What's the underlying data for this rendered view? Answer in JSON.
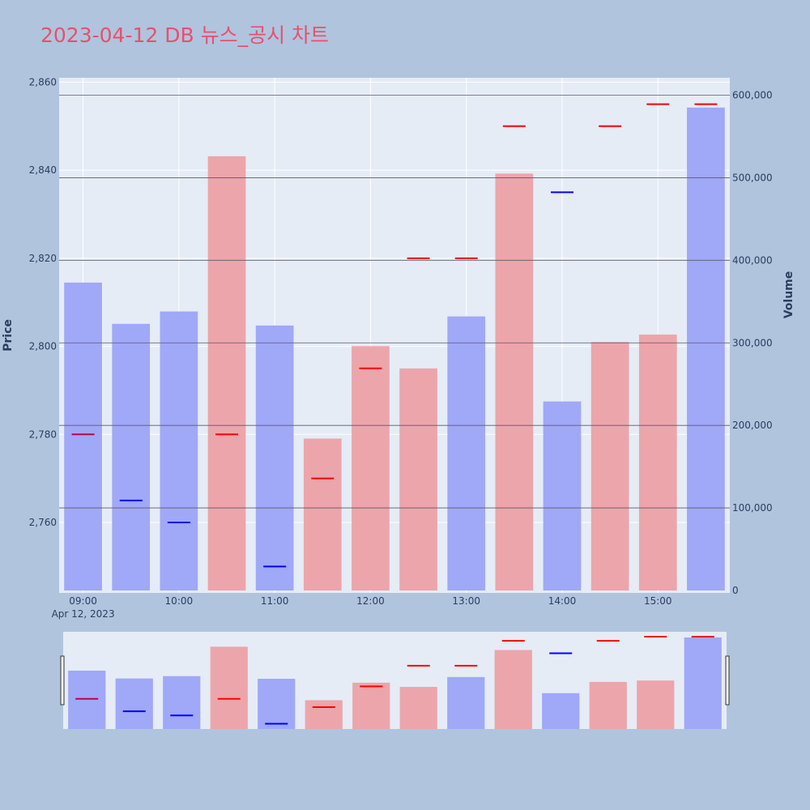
{
  "title": "2023-04-12 DB 뉴스_공시 차트",
  "chart_data": {
    "type": "bar",
    "x_tick_labels": [
      "09:00",
      "10:00",
      "11:00",
      "12:00",
      "13:00",
      "14:00",
      "15:00"
    ],
    "x_date_label": "Apr 12, 2023",
    "y_left": {
      "label": "Price",
      "ticks": [
        "2,760",
        "2,780",
        "2,800",
        "2,820",
        "2,840",
        "2,860"
      ],
      "range": [
        2744,
        2861
      ]
    },
    "y_right": {
      "label": "Volume",
      "ticks": [
        "0",
        "100,000",
        "200,000",
        "300,000",
        "400,000",
        "500,000",
        "600,000"
      ],
      "range": [
        0,
        600000
      ]
    },
    "grid": true,
    "times": [
      "09:00",
      "09:30",
      "10:00",
      "10:30",
      "11:00",
      "11:30",
      "12:00",
      "12:30",
      "13:00",
      "13:30",
      "14:00",
      "14:30",
      "15:00",
      "15:30"
    ],
    "series": [
      {
        "kind": "volume_bars",
        "values": [
          373000,
          323000,
          338000,
          526000,
          321000,
          184000,
          296000,
          269000,
          332000,
          505000,
          229000,
          301000,
          310000,
          585000
        ],
        "colors": [
          "blue",
          "blue",
          "blue",
          "red",
          "blue",
          "red",
          "red",
          "red",
          "blue",
          "red",
          "blue",
          "red",
          "red",
          "blue"
        ]
      },
      {
        "kind": "price_marks",
        "values": [
          2780,
          2765,
          2760,
          2780,
          2750,
          2770,
          2795,
          2820,
          2820,
          2850,
          2835,
          2850,
          2855,
          2855
        ],
        "colors": [
          "mixed",
          "blue",
          "blue",
          "red",
          "blue",
          "red",
          "red",
          "red",
          "red",
          "red",
          "blue",
          "red",
          "red",
          "red"
        ]
      }
    ],
    "colors": {
      "blue_bar": "#a0a8f8",
      "red_bar": "#eca5ab",
      "blue_mark": "#0000ff",
      "red_mark": "#ff0000",
      "mixed_mark": "#c0004a"
    }
  }
}
